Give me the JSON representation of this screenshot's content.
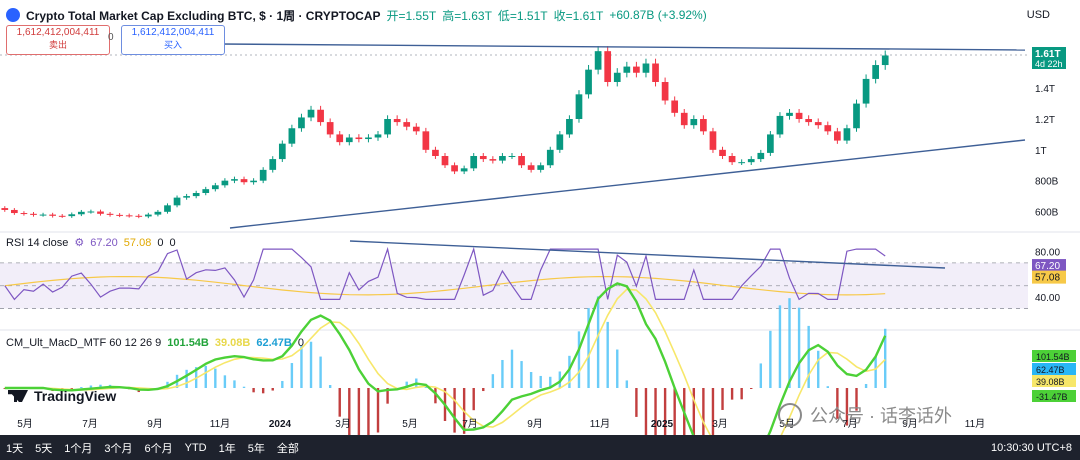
{
  "header": {
    "title": "Crypto Total Market Cap Excluding BTC, $ · 1周 · CRYPTOCAP",
    "open": "开=1.55T",
    "high": "高=1.63T",
    "low": "低=1.51T",
    "close": "收=1.61T",
    "change": "+60.87B (+3.92%)",
    "currency": "USD"
  },
  "trade": {
    "sell_price": "1,612,412,004,411",
    "sell_label": "卖出",
    "spread": "0",
    "buy_price": "1,612,412,004,411",
    "buy_label": "买入"
  },
  "rsi_legend": {
    "name": "RSI 14 close",
    "rsi": "67.20",
    "ma": "57.08",
    "z1": "0",
    "z2": "0"
  },
  "macd_legend": {
    "name": "CM_Ult_MacD_MTF 60 12 26 9",
    "v1": "101.54B",
    "v2": "39.08B",
    "v3": "62.47B",
    "v4": "0"
  },
  "brand": "TradingView",
  "watermark": "公众号 · 话李话外",
  "ranges": [
    "1天",
    "5天",
    "1个月",
    "3个月",
    "6个月",
    "YTD",
    "1年",
    "5年",
    "全部"
  ],
  "clock": "10:30:30 UTC+8",
  "colors": {
    "up": "#089981",
    "down": "#f23645",
    "rsi": "#7e57c2",
    "rsi_ma": "#f7c948",
    "trend": "#3e5f96",
    "macd_green": "#4cd137",
    "macd_red": "#d0312d",
    "macd_yellow": "#f7e76a"
  },
  "chart_data": {
    "type": "candlestick",
    "price_axis": {
      "ticks": [
        "1.4T",
        "1.2T",
        "1T",
        "800B",
        "600B"
      ],
      "tick_values": [
        1400,
        1200,
        1000,
        800,
        600
      ],
      "unit": "B",
      "last_label": "1.61T",
      "last_sub": "4d 22h"
    },
    "time_axis": [
      "5月",
      "7月",
      "9月",
      "11月",
      "2024",
      "3月",
      "5月",
      "7月",
      "9月",
      "11月",
      "2025",
      "3月",
      "5月",
      "7月",
      "9月",
      "11月"
    ],
    "closes": [
      610,
      590,
      585,
      578,
      580,
      572,
      570,
      582,
      598,
      600,
      585,
      578,
      575,
      572,
      568,
      580,
      598,
      640,
      690,
      700,
      720,
      745,
      770,
      800,
      810,
      790,
      800,
      870,
      940,
      1040,
      1140,
      1210,
      1260,
      1180,
      1100,
      1050,
      1080,
      1070,
      1080,
      1100,
      1200,
      1180,
      1150,
      1120,
      1000,
      960,
      900,
      860,
      880,
      960,
      940,
      930,
      960,
      960,
      900,
      870,
      900,
      1000,
      1100,
      1200,
      1360,
      1520,
      1640,
      1440,
      1500,
      1540,
      1500,
      1560,
      1440,
      1320,
      1240,
      1160,
      1200,
      1120,
      1000,
      960,
      920,
      920,
      940,
      980,
      1100,
      1220,
      1240,
      1200,
      1180,
      1160,
      1120,
      1060,
      1140,
      1300,
      1460,
      1550,
      1612
    ],
    "rsi": {
      "axis_ticks": [
        "80.00",
        "40.00"
      ],
      "tick_values": [
        80,
        40
      ],
      "last": 67.2,
      "ma_last": 57.08
    },
    "macd": {
      "labels": [
        "101.54B",
        "62.47B",
        "39.08B",
        "-31.47B"
      ]
    }
  }
}
